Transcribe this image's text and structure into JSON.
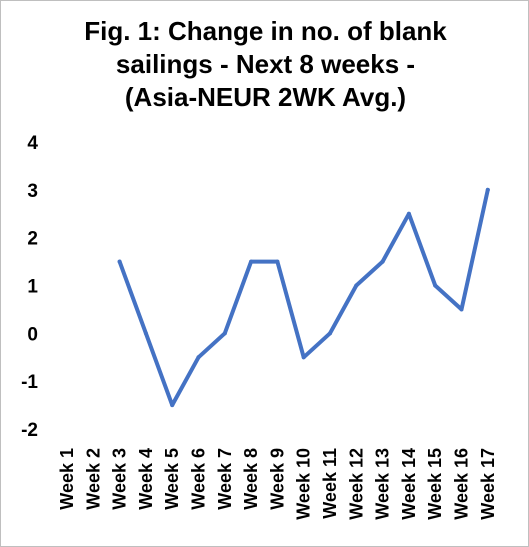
{
  "chart_data": {
    "type": "line",
    "title_lines": [
      "Fig. 1: Change in no. of blank",
      "sailings - Next 8 weeks -",
      "(Asia-NEUR 2WK Avg.)"
    ],
    "categories": [
      "Week 1",
      "Week 2",
      "Week 3",
      "Week 4",
      "Week 5",
      "Week 6",
      "Week 7",
      "Week 8",
      "Week 9",
      "Week 10",
      "Week 11",
      "Week 12",
      "Week 13",
      "Week 14",
      "Week 15",
      "Week 16",
      "Week 17"
    ],
    "series": [
      {
        "values": [
          null,
          null,
          1.5,
          0,
          -1.5,
          -0.5,
          0,
          1.5,
          1.5,
          -0.5,
          0,
          1,
          1.5,
          2.5,
          1,
          0.5,
          3
        ]
      }
    ],
    "yticks": [
      "4",
      "3",
      "2",
      "1",
      "0",
      "-1",
      "-2"
    ],
    "ylim": [
      -2,
      4
    ],
    "grid": false,
    "legend": "none",
    "line_color": "#4472c4"
  }
}
